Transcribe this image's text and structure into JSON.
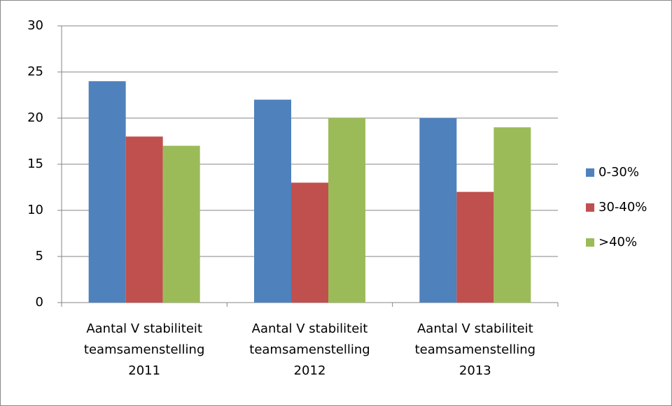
{
  "chart_data": {
    "type": "bar",
    "categories": [
      "Aantal V stabiliteit teamsamenstelling 2011",
      "Aantal V stabiliteit teamsamenstelling 2012",
      "Aantal V stabiliteit teamsamenstelling 2013"
    ],
    "series": [
      {
        "name": "0-30%",
        "color": "#4f81bd",
        "values": [
          24,
          22,
          20
        ]
      },
      {
        "name": "30-40%",
        "color": "#c0504d",
        "values": [
          18,
          13,
          12
        ]
      },
      {
        "name": ">40%",
        "color": "#9bbb59",
        "values": [
          17,
          20,
          19
        ]
      }
    ],
    "ylim": [
      0,
      30
    ],
    "yticks": [
      0,
      5,
      10,
      15,
      20,
      25,
      30
    ],
    "grid": true,
    "legend": "right"
  }
}
